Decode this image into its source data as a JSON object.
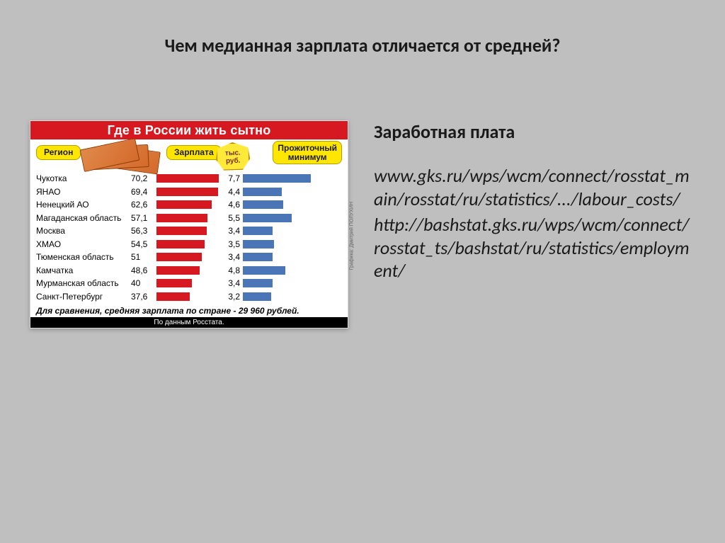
{
  "title": "Чем медианная зарплата отличается от средней?",
  "right": {
    "heading": "Заработная плата",
    "body": "www.gks.ru/wps/wcm/connect/rosstat_main/rosstat/ru/statistics/.../labour_costs/\nhttp://bashstat.gks.ru/wps/wcm/connect/rosstat_ts/bashstat/ru/statistics/employment/"
  },
  "infographic": {
    "type": "bar",
    "title": "Где в России жить сытно",
    "pill_region": "Регион",
    "pill_salary": "Зарплата",
    "pill_min": "Прожиточный\nминимум",
    "ruble_badge": "тыс.\nруб.",
    "footnote": "Для сравнения, средняя зарплата по стране - 29 960 рублей.",
    "source": "По данным Росстата.",
    "credit": "Графика: Дмитрий ПОЛУХИН",
    "salary_color": "#d61820",
    "min_color": "#4a76b8",
    "salary_max": 70.2,
    "min_max": 7.7,
    "rows": [
      {
        "label": "Чукотка",
        "salary": "70,2",
        "salary_v": 70.2,
        "min": "7,7",
        "min_v": 7.7
      },
      {
        "label": "ЯНАО",
        "salary": "69,4",
        "salary_v": 69.4,
        "min": "4,4",
        "min_v": 4.4
      },
      {
        "label": "Ненецкий АО",
        "salary": "62,6",
        "salary_v": 62.6,
        "min": "4,6",
        "min_v": 4.6
      },
      {
        "label": "Магаданская область",
        "salary": "57,1",
        "salary_v": 57.1,
        "min": "5,5",
        "min_v": 5.5
      },
      {
        "label": "Москва",
        "salary": "56,3",
        "salary_v": 56.3,
        "min": "3,4",
        "min_v": 3.4
      },
      {
        "label": "ХМАО",
        "salary": "54,5",
        "salary_v": 54.5,
        "min": "3,5",
        "min_v": 3.5
      },
      {
        "label": "Тюменская область",
        "salary": "51",
        "salary_v": 51,
        "min": "3,4",
        "min_v": 3.4
      },
      {
        "label": "Камчатка",
        "salary": "48,6",
        "salary_v": 48.6,
        "min": "4,8",
        "min_v": 4.8
      },
      {
        "label": "Мурманская область",
        "salary": "40",
        "salary_v": 40,
        "min": "3,4",
        "min_v": 3.4
      },
      {
        "label": "Санкт-Петербург",
        "salary": "37,6",
        "salary_v": 37.6,
        "min": "3,2",
        "min_v": 3.2
      }
    ]
  }
}
